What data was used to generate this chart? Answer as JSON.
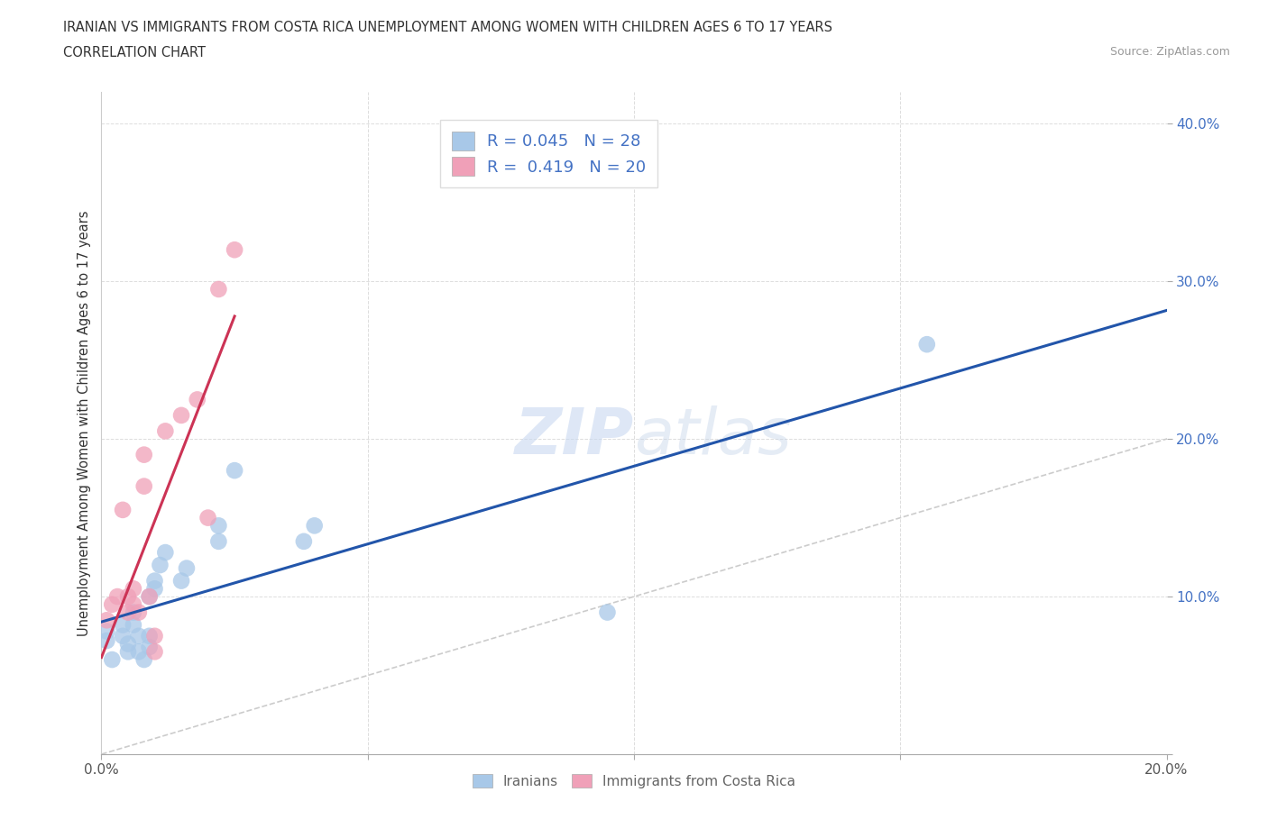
{
  "title_line1": "IRANIAN VS IMMIGRANTS FROM COSTA RICA UNEMPLOYMENT AMONG WOMEN WITH CHILDREN AGES 6 TO 17 YEARS",
  "title_line2": "CORRELATION CHART",
  "source": "Source: ZipAtlas.com",
  "ylabel": "Unemployment Among Women with Children Ages 6 to 17 years",
  "xlim": [
    0.0,
    0.2
  ],
  "ylim": [
    0.0,
    0.42
  ],
  "xticks": [
    0.0,
    0.05,
    0.1,
    0.15,
    0.2
  ],
  "yticks": [
    0.0,
    0.1,
    0.2,
    0.3,
    0.4
  ],
  "iranians_x": [
    0.001,
    0.001,
    0.002,
    0.004,
    0.004,
    0.005,
    0.005,
    0.006,
    0.006,
    0.007,
    0.007,
    0.008,
    0.009,
    0.009,
    0.009,
    0.01,
    0.01,
    0.011,
    0.012,
    0.015,
    0.016,
    0.022,
    0.022,
    0.025,
    0.038,
    0.04,
    0.095,
    0.155
  ],
  "iranians_y": [
    0.072,
    0.078,
    0.06,
    0.075,
    0.082,
    0.065,
    0.07,
    0.082,
    0.09,
    0.065,
    0.075,
    0.06,
    0.068,
    0.075,
    0.1,
    0.105,
    0.11,
    0.12,
    0.128,
    0.11,
    0.118,
    0.135,
    0.145,
    0.18,
    0.135,
    0.145,
    0.09,
    0.26
  ],
  "costarica_x": [
    0.001,
    0.002,
    0.003,
    0.004,
    0.005,
    0.005,
    0.006,
    0.006,
    0.007,
    0.008,
    0.008,
    0.009,
    0.01,
    0.01,
    0.012,
    0.015,
    0.018,
    0.02,
    0.022,
    0.025
  ],
  "costarica_y": [
    0.085,
    0.095,
    0.1,
    0.155,
    0.09,
    0.1,
    0.095,
    0.105,
    0.09,
    0.17,
    0.19,
    0.1,
    0.065,
    0.075,
    0.205,
    0.215,
    0.225,
    0.15,
    0.295,
    0.32
  ],
  "iranian_color": "#a8c8e8",
  "costarica_color": "#f0a0b8",
  "iranian_line_color": "#2255aa",
  "costarica_line_color": "#cc3355",
  "legend_R1": "0.045",
  "legend_N1": "28",
  "legend_R2": "0.419",
  "legend_N2": "20",
  "watermark_zip": "ZIP",
  "watermark_atlas": "atlas",
  "background_color": "#ffffff",
  "legend_text_color": "#4472c4",
  "ytick_color": "#4472c4",
  "xtick_color": "#555555",
  "title_color": "#333333",
  "ylabel_color": "#333333"
}
